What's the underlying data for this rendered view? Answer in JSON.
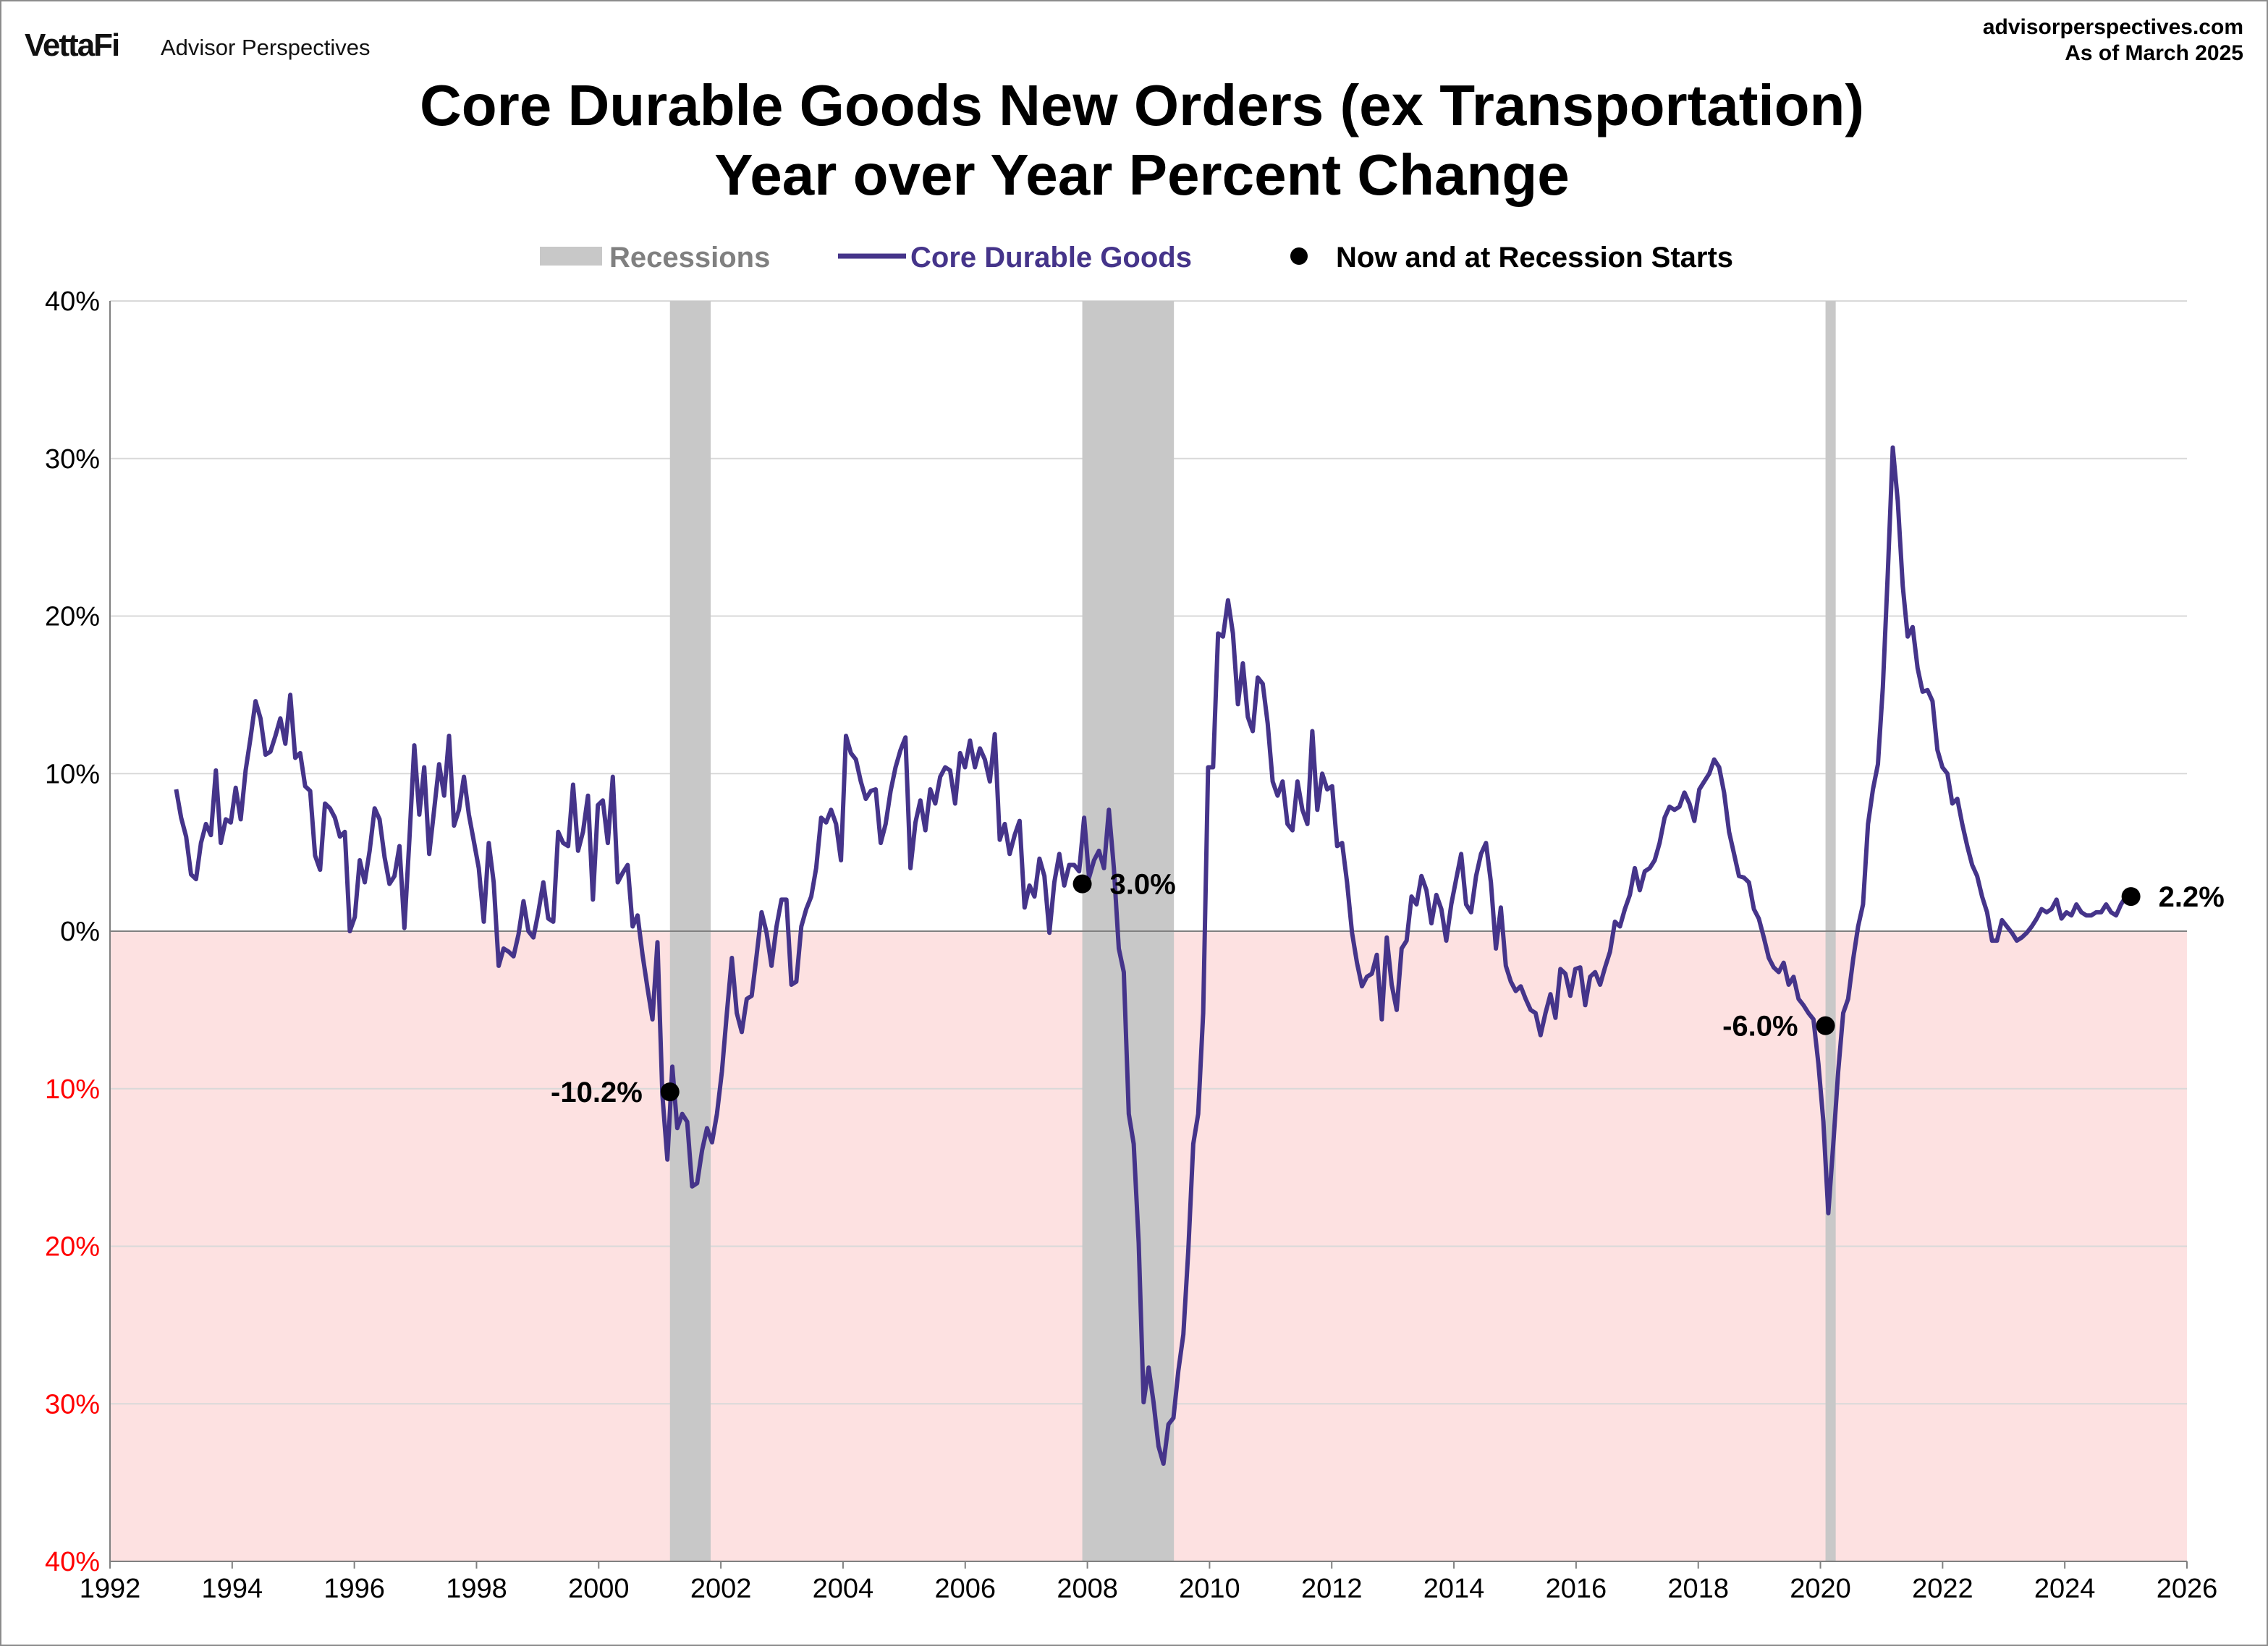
{
  "header": {
    "logo": "VettaFi",
    "brand": "Advisor Perspectives",
    "site": "advisorperspectives.com",
    "as_of": "As of March 2025"
  },
  "chart_data": {
    "type": "line",
    "title": [
      "Core Durable Goods New Orders (ex Transportation)",
      "Year over Year Percent Change"
    ],
    "xlabel": "",
    "ylabel": "",
    "xlim": [
      1992,
      2026
    ],
    "ylim": [
      -40,
      40
    ],
    "grid": true,
    "legend_position": "top-center",
    "x_ticks": [
      "1992",
      "1994",
      "1996",
      "1998",
      "2000",
      "2002",
      "2004",
      "2006",
      "2008",
      "2010",
      "2012",
      "2014",
      "2016",
      "2018",
      "2020",
      "2022",
      "2024",
      "2026"
    ],
    "y_ticks": [
      {
        "value": 40,
        "label": "40%"
      },
      {
        "value": 30,
        "label": "30%"
      },
      {
        "value": 20,
        "label": "20%"
      },
      {
        "value": 10,
        "label": "10%"
      },
      {
        "value": 0,
        "label": "0%"
      },
      {
        "value": -10,
        "label": "10%"
      },
      {
        "value": -20,
        "label": "20%"
      },
      {
        "value": -30,
        "label": "30%"
      },
      {
        "value": -40,
        "label": "40%"
      }
    ],
    "legend": {
      "recessions": "Recessions",
      "series": "Core Durable Goods",
      "markers": "Now and at Recession Starts"
    },
    "colors": {
      "series": "#45348a",
      "recession": "#c8c8c8",
      "negative_zone": "#fde1e1",
      "grid": "#d9d9d9",
      "negative_tick": "#ff0000"
    },
    "recessions": [
      {
        "start": "2001-03",
        "end": "2001-11"
      },
      {
        "start": "2007-12",
        "end": "2009-06"
      },
      {
        "start": "2020-02",
        "end": "2020-04"
      }
    ],
    "series": [
      {
        "name": "Core Durable Goods",
        "start": "1993-02",
        "end": "2025-02",
        "frequency": "monthly",
        "values": [
          9.0,
          7.2,
          6.0,
          3.6,
          3.3,
          5.6,
          6.8,
          6.1,
          10.2,
          5.6,
          7.1,
          6.9,
          9.1,
          7.1,
          10.2,
          12.3,
          14.6,
          13.5,
          11.2,
          11.4,
          12.4,
          13.5,
          11.9,
          15.0,
          11.0,
          11.3,
          9.2,
          8.9,
          4.8,
          3.9,
          8.1,
          7.8,
          7.2,
          6.0,
          6.3,
          0.0,
          0.9,
          4.5,
          3.1,
          5.1,
          7.8,
          7.1,
          4.7,
          3.0,
          3.5,
          5.4,
          0.2,
          5.8,
          11.8,
          7.4,
          10.4,
          4.9,
          7.7,
          10.6,
          8.6,
          12.4,
          6.7,
          7.7,
          9.8,
          7.4,
          5.7,
          4.0,
          0.6,
          5.6,
          3.1,
          -2.2,
          -1.1,
          -1.3,
          -1.6,
          -0.2,
          1.9,
          0.0,
          -0.4,
          1.2,
          3.1,
          0.8,
          0.6,
          6.3,
          5.6,
          5.4,
          9.3,
          5.1,
          6.3,
          8.6,
          2.0,
          8.0,
          8.3,
          5.6,
          9.8,
          3.1,
          3.7,
          4.2,
          0.3,
          1.0,
          -1.5,
          -3.6,
          -5.6,
          -0.7,
          -10.4,
          -14.5,
          -8.6,
          -12.5,
          -11.6,
          -12.1,
          -16.2,
          -16.0,
          -13.9,
          -12.5,
          -13.4,
          -11.6,
          -8.9,
          -5.2,
          -1.7,
          -5.2,
          -6.4,
          -4.3,
          -4.1,
          -1.5,
          1.2,
          -0.1,
          -2.2,
          0.3,
          2.0,
          2.0,
          -3.4,
          -3.2,
          0.3,
          1.4,
          2.2,
          4.0,
          7.2,
          6.9,
          7.7,
          6.8,
          4.5,
          12.4,
          11.3,
          10.9,
          9.5,
          8.4,
          8.9,
          9.0,
          5.6,
          6.8,
          8.9,
          10.4,
          11.5,
          12.3,
          4.0,
          6.9,
          8.3,
          6.4,
          9.0,
          8.1,
          9.8,
          10.4,
          10.2,
          8.1,
          11.3,
          10.4,
          12.1,
          10.4,
          11.6,
          10.9,
          9.5,
          12.5,
          5.8,
          6.8,
          4.9,
          6.1,
          7.0,
          1.5,
          2.9,
          2.2,
          4.6,
          3.5,
          -0.1,
          3.1,
          4.9,
          2.9,
          4.2,
          4.2,
          3.8,
          7.2,
          3.4,
          4.5,
          5.1,
          4.0,
          7.7,
          4.0,
          -1.1,
          -2.6,
          -11.6,
          -13.5,
          -19.8,
          -29.9,
          -27.7,
          -29.9,
          -32.7,
          -33.8,
          -31.3,
          -30.9,
          -27.9,
          -25.6,
          -20.3,
          -13.5,
          -11.6,
          -5.2,
          10.4,
          10.4,
          18.9,
          18.7,
          21.0,
          18.9,
          14.4,
          17.0,
          13.6,
          12.7,
          16.1,
          15.7,
          13.2,
          9.5,
          8.6,
          9.5,
          6.8,
          6.4,
          9.5,
          7.7,
          6.8,
          12.7,
          7.7,
          10.0,
          9.0,
          9.2,
          5.4,
          5.6,
          3.1,
          -0.1,
          -2.0,
          -3.5,
          -2.9,
          -2.7,
          -1.5,
          -5.6,
          -0.4,
          -3.4,
          -5.0,
          -1.1,
          -0.6,
          2.2,
          1.7,
          3.5,
          2.6,
          0.5,
          2.3,
          1.4,
          -0.6,
          1.7,
          3.3,
          4.9,
          1.7,
          1.2,
          3.5,
          4.9,
          5.6,
          3.1,
          -1.1,
          1.5,
          -2.2,
          -3.2,
          -3.8,
          -3.5,
          -4.3,
          -5.0,
          -5.2,
          -6.6,
          -5.2,
          -4.0,
          -5.5,
          -2.4,
          -2.7,
          -4.1,
          -2.4,
          -2.3,
          -4.7,
          -2.9,
          -2.6,
          -3.4,
          -2.3,
          -1.3,
          0.6,
          0.3,
          1.4,
          2.3,
          4.0,
          2.6,
          3.8,
          4.0,
          4.5,
          5.6,
          7.2,
          7.9,
          7.7,
          7.9,
          8.8,
          8.1,
          7.0,
          9.0,
          9.5,
          10.0,
          10.9,
          10.4,
          8.8,
          6.3,
          4.9,
          3.5,
          3.4,
          3.1,
          1.4,
          0.8,
          -0.4,
          -1.7,
          -2.3,
          -2.6,
          -2.0,
          -3.4,
          -2.9,
          -4.3,
          -4.7,
          -5.2,
          -5.6,
          -8.4,
          -12.1,
          -17.9,
          -13.5,
          -8.9,
          -5.2,
          -4.3,
          -1.8,
          0.3,
          1.7,
          6.8,
          9.0,
          10.6,
          15.5,
          22.8,
          30.7,
          27.3,
          21.9,
          18.7,
          19.3,
          16.7,
          15.2,
          15.3,
          14.6,
          11.5,
          10.4,
          10.0,
          8.1,
          8.4,
          6.8,
          5.4,
          4.2,
          3.5,
          2.2,
          1.2,
          -0.6,
          -0.6,
          0.7,
          0.3,
          -0.1,
          -0.6,
          -0.4,
          -0.1,
          0.3,
          0.8,
          1.4,
          1.2,
          1.4,
          2.0,
          0.8,
          1.2,
          1.0,
          1.7,
          1.2,
          1.0,
          1.0,
          1.2,
          1.2,
          1.7,
          1.2,
          1.0,
          1.7,
          2.2,
          2.2
        ]
      }
    ],
    "markers": [
      {
        "date": "2001-03",
        "value": -10.2,
        "label": "-10.2%",
        "side": "left"
      },
      {
        "date": "2007-12",
        "value": 3.0,
        "label": "3.0%",
        "side": "right"
      },
      {
        "date": "2020-02",
        "value": -6.0,
        "label": "-6.0%",
        "side": "left"
      },
      {
        "date": "2025-02",
        "value": 2.2,
        "label": "2.2%",
        "side": "right"
      }
    ]
  }
}
